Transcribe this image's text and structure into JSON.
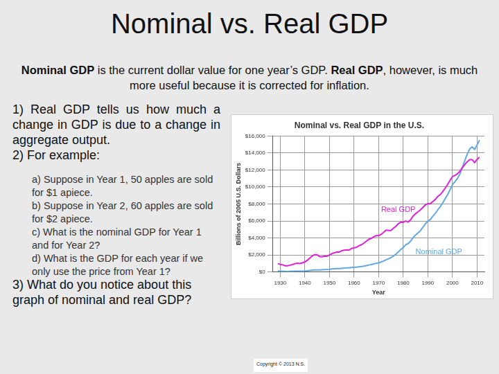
{
  "slide": {
    "title": "Nominal vs. Real GDP",
    "intro": [
      {
        "text": "Nominal GDP",
        "bold": true
      },
      {
        "text": " is the current dollar value for one year’s GDP.  "
      },
      {
        "text": "Real GDP",
        "bold": true
      },
      {
        "text": ", however, is much more useful because it is corrected for inflation."
      }
    ],
    "points": [
      "1) Real GDP tells us how much a change in GDP is due to a change in aggregate output.",
      "2) For example:"
    ],
    "subpoints": [
      "a) Suppose in Year 1, 50 apples are sold for $1 apiece.",
      "b) Suppose in Year 2, 60 apples are sold for $2 apiece.",
      "c) What is the nominal GDP for Year 1 and for Year 2?",
      "d) What is the GDP for each year if we only use the price from Year 1?"
    ],
    "question": "3) What do you notice about this graph of nominal and real GDP?",
    "copyright": "Copyright © 2013 N.S."
  },
  "chart_data": {
    "type": "line",
    "title": "Nominal vs. Real GDP in the U.S.",
    "x_label": "Year",
    "y_label": "Billions of 2005 U.S. Dollars",
    "x": [
      1929,
      1930,
      1931,
      1932,
      1933,
      1934,
      1935,
      1936,
      1937,
      1938,
      1939,
      1940,
      1941,
      1942,
      1943,
      1944,
      1945,
      1946,
      1947,
      1948,
      1949,
      1950,
      1951,
      1952,
      1953,
      1954,
      1955,
      1956,
      1957,
      1958,
      1959,
      1960,
      1961,
      1962,
      1963,
      1964,
      1965,
      1966,
      1967,
      1968,
      1969,
      1970,
      1971,
      1972,
      1973,
      1974,
      1975,
      1976,
      1977,
      1978,
      1979,
      1980,
      1981,
      1982,
      1983,
      1984,
      1985,
      1986,
      1987,
      1988,
      1989,
      1990,
      1991,
      1992,
      1993,
      1994,
      1995,
      1996,
      1997,
      1998,
      1999,
      2000,
      2001,
      2002,
      2003,
      2004,
      2005,
      2006,
      2007,
      2008,
      2009,
      2010,
      2011
    ],
    "series": [
      {
        "name": "Real GDP",
        "color": "#e020d8",
        "values": [
          977,
          892,
          834,
          725,
          716,
          794,
          865,
          977,
          1027,
          992,
          1072,
          1166,
          1366,
          1618,
          1883,
          2035,
          2012,
          1793,
          1776,
          1855,
          1845,
          2006,
          2161,
          2244,
          2347,
          2332,
          2500,
          2550,
          2601,
          2577,
          2762,
          2831,
          2897,
          3072,
          3207,
          3392,
          3610,
          3845,
          3942,
          4133,
          4262,
          4270,
          4413,
          4648,
          4917,
          4890,
          4880,
          5141,
          5377,
          5677,
          5855,
          5839,
          5987,
          5871,
          6136,
          6577,
          6849,
          7087,
          7313,
          7614,
          7886,
          8034,
          8015,
          8287,
          8523,
          8871,
          9094,
          9434,
          9854,
          10284,
          10780,
          11226,
          11347,
          11553,
          11841,
          12264,
          12638,
          12976,
          13229,
          13229,
          12881,
          13248,
          13500
        ]
      },
      {
        "name": "Nominal GDP",
        "color": "#5fa8e8",
        "values": [
          104,
          92,
          77,
          60,
          57,
          66,
          74,
          84,
          93,
          87,
          93,
          103,
          129,
          166,
          203,
          225,
          229,
          228,
          250,
          275,
          272,
          300,
          347,
          367,
          389,
          391,
          425,
          449,
          474,
          482,
          522,
          543,
          563,
          605,
          638,
          686,
          744,
          815,
          862,
          943,
          1019,
          1075,
          1168,
          1282,
          1429,
          1549,
          1689,
          1878,
          2086,
          2357,
          2632,
          2863,
          3211,
          3345,
          3638,
          4041,
          4347,
          4590,
          4870,
          5253,
          5658,
          5980,
          6174,
          6539,
          6879,
          7309,
          7664,
          8100,
          8609,
          9089,
          9661,
          10285,
          10622,
          10978,
          11511,
          12275,
          13094,
          13856,
          14478,
          14719,
          14419,
          14964,
          15518
        ]
      }
    ],
    "annotations": [
      {
        "text": "Real GDP",
        "x": 1971,
        "y": 7300,
        "color": "#e020d8"
      },
      {
        "text": "Nominal GDP",
        "x": 1985,
        "y": 2300,
        "color": "#5fa8e8"
      }
    ],
    "xlim": [
      1927,
      2013
    ],
    "xticks": [
      1930,
      1940,
      1950,
      1960,
      1970,
      1980,
      1990,
      2000,
      2010
    ],
    "ylim": [
      0,
      16000
    ],
    "yticks": [
      {
        "value": 0,
        "label": "$0"
      },
      {
        "value": 2000,
        "label": "$2,000"
      },
      {
        "value": 4000,
        "label": "$4,000"
      },
      {
        "value": 6000,
        "label": "$6,000"
      },
      {
        "value": 8000,
        "label": "$8,000"
      },
      {
        "value": 10000,
        "label": "$10,000"
      },
      {
        "value": 12000,
        "label": "$12,000"
      },
      {
        "value": 14000,
        "label": "$14,000"
      },
      {
        "value": 16000,
        "label": "$16,000"
      }
    ],
    "grid": true
  }
}
